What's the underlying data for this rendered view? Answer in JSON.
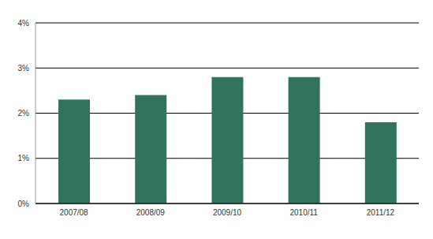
{
  "chart_data": {
    "type": "bar",
    "categories": [
      "2007/08",
      "2008/09",
      "2009/10",
      "2010/11",
      "2011/12"
    ],
    "values": [
      2.3,
      2.4,
      2.8,
      2.8,
      1.8
    ],
    "color": "#31735c",
    "ylim": [
      0,
      4
    ],
    "yticks": [
      {
        "value": 0,
        "label": "0%"
      },
      {
        "value": 1,
        "label": "1%"
      },
      {
        "value": 2,
        "label": "2%"
      },
      {
        "value": 3,
        "label": "3%"
      },
      {
        "value": 4,
        "label": "4%"
      }
    ],
    "grid": true
  }
}
